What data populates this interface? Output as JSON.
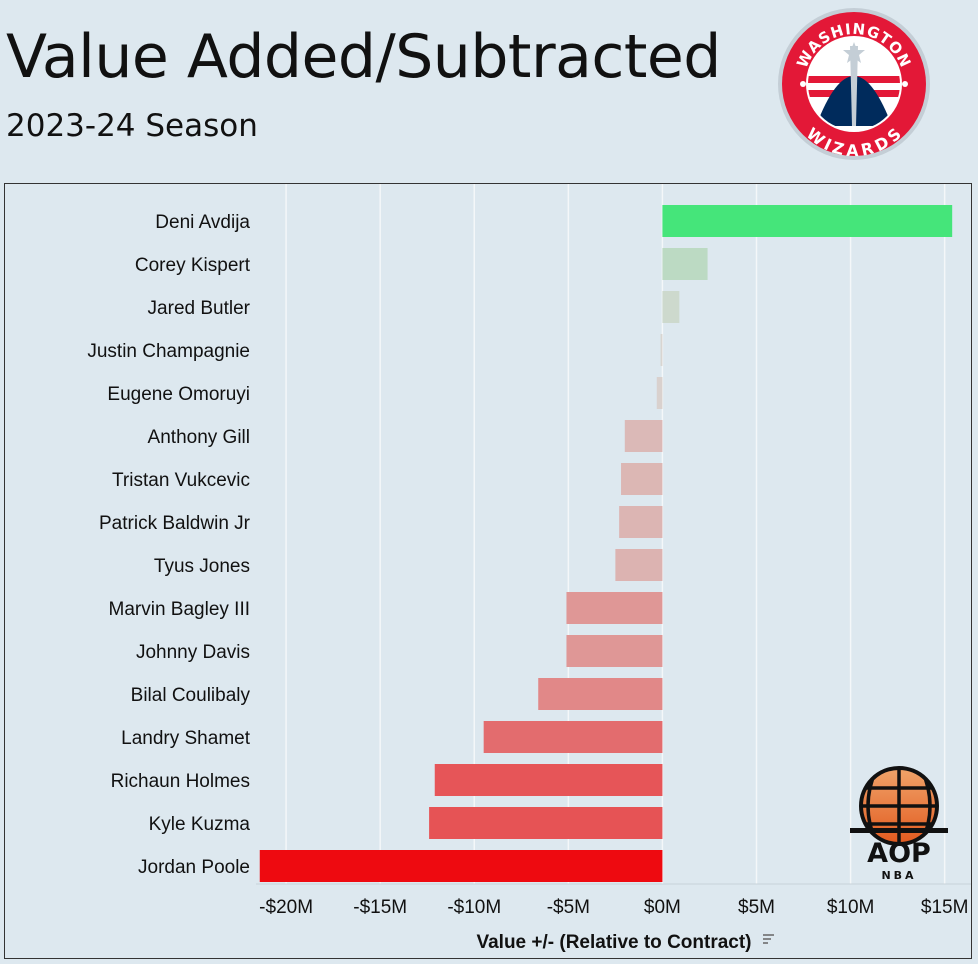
{
  "header": {
    "title": "Value Added/Subtracted",
    "subtitle": "2023-24 Season"
  },
  "logos": {
    "team_text_top": "WASHINGTON",
    "team_text_bottom": "WIZARDS",
    "brand_text": "AOP",
    "brand_subtext": "NBA"
  },
  "colors": {
    "background": "#dde8ef",
    "best": "#45e57a",
    "worst": "#ee0a10",
    "neutral": "#d8d8d4"
  },
  "chart_data": {
    "type": "bar",
    "orientation": "horizontal",
    "categories": [
      "Deni Avdija",
      "Corey Kispert",
      "Jared Butler",
      "Justin Champagnie",
      "Eugene Omoruyi",
      "Anthony Gill",
      "Tristan Vukcevic",
      "Patrick Baldwin Jr",
      "Tyus Jones",
      "Marvin Bagley III",
      "Johnny Davis",
      "Bilal Coulibaly",
      "Landry Shamet",
      "Richaun Holmes",
      "Kyle Kuzma",
      "Jordan Poole"
    ],
    "values": [
      15.4,
      2.4,
      0.9,
      -0.1,
      -0.3,
      -2.0,
      -2.2,
      -2.3,
      -2.5,
      -5.1,
      -5.1,
      -6.6,
      -9.5,
      -12.1,
      -12.4,
      -21.4
    ],
    "xlabel": "Value +/- (Relative to Contract)",
    "ylabel": "",
    "xlim": [
      -21.6,
      16.4
    ],
    "xticks": [
      -20,
      -15,
      -10,
      -5,
      0,
      5,
      10,
      15
    ],
    "xtick_labels": [
      "-$20M",
      "-$15M",
      "-$10M",
      "-$5M",
      "$0M",
      "$5M",
      "$10M",
      "$15M"
    ],
    "grid": true,
    "legend": "none",
    "sort_indicator": "sort-descending-icon"
  }
}
